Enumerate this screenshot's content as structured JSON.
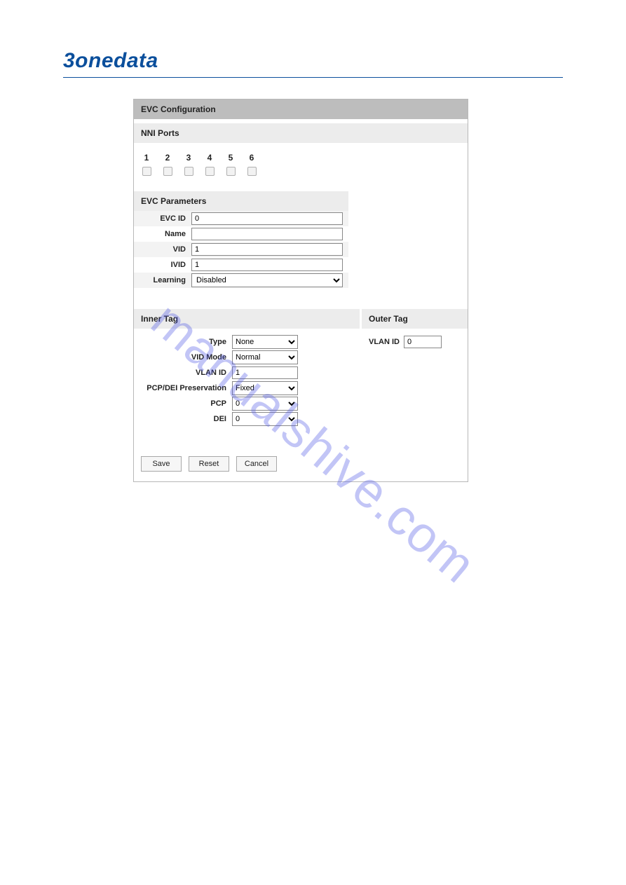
{
  "brand": "3onedata",
  "watermark": "manualshive.com",
  "panel": {
    "title": "EVC Configuration",
    "nni_ports_label": "NNI Ports",
    "ports": [
      "1",
      "2",
      "3",
      "4",
      "5",
      "6"
    ],
    "evc_params_label": "EVC Parameters",
    "fields": {
      "evc_id_label": "EVC ID",
      "evc_id_value": "0",
      "name_label": "Name",
      "name_value": "",
      "vid_label": "VID",
      "vid_value": "1",
      "ivid_label": "IVID",
      "ivid_value": "1",
      "learning_label": "Learning",
      "learning_value": "Disabled"
    },
    "inner_tag": {
      "label": "Inner Tag",
      "type_label": "Type",
      "type_value": "None",
      "vid_mode_label": "VID Mode",
      "vid_mode_value": "Normal",
      "vlan_id_label": "VLAN ID",
      "vlan_id_value": "1",
      "pcp_dei_label": "PCP/DEI Preservation",
      "pcp_dei_value": "Fixed",
      "pcp_label": "PCP",
      "pcp_value": "0",
      "dei_label": "DEI",
      "dei_value": "0"
    },
    "outer_tag": {
      "label": "Outer Tag",
      "vlan_id_label": "VLAN ID",
      "vlan_id_value": "0"
    },
    "buttons": {
      "save": "Save",
      "reset": "Reset",
      "cancel": "Cancel"
    }
  }
}
